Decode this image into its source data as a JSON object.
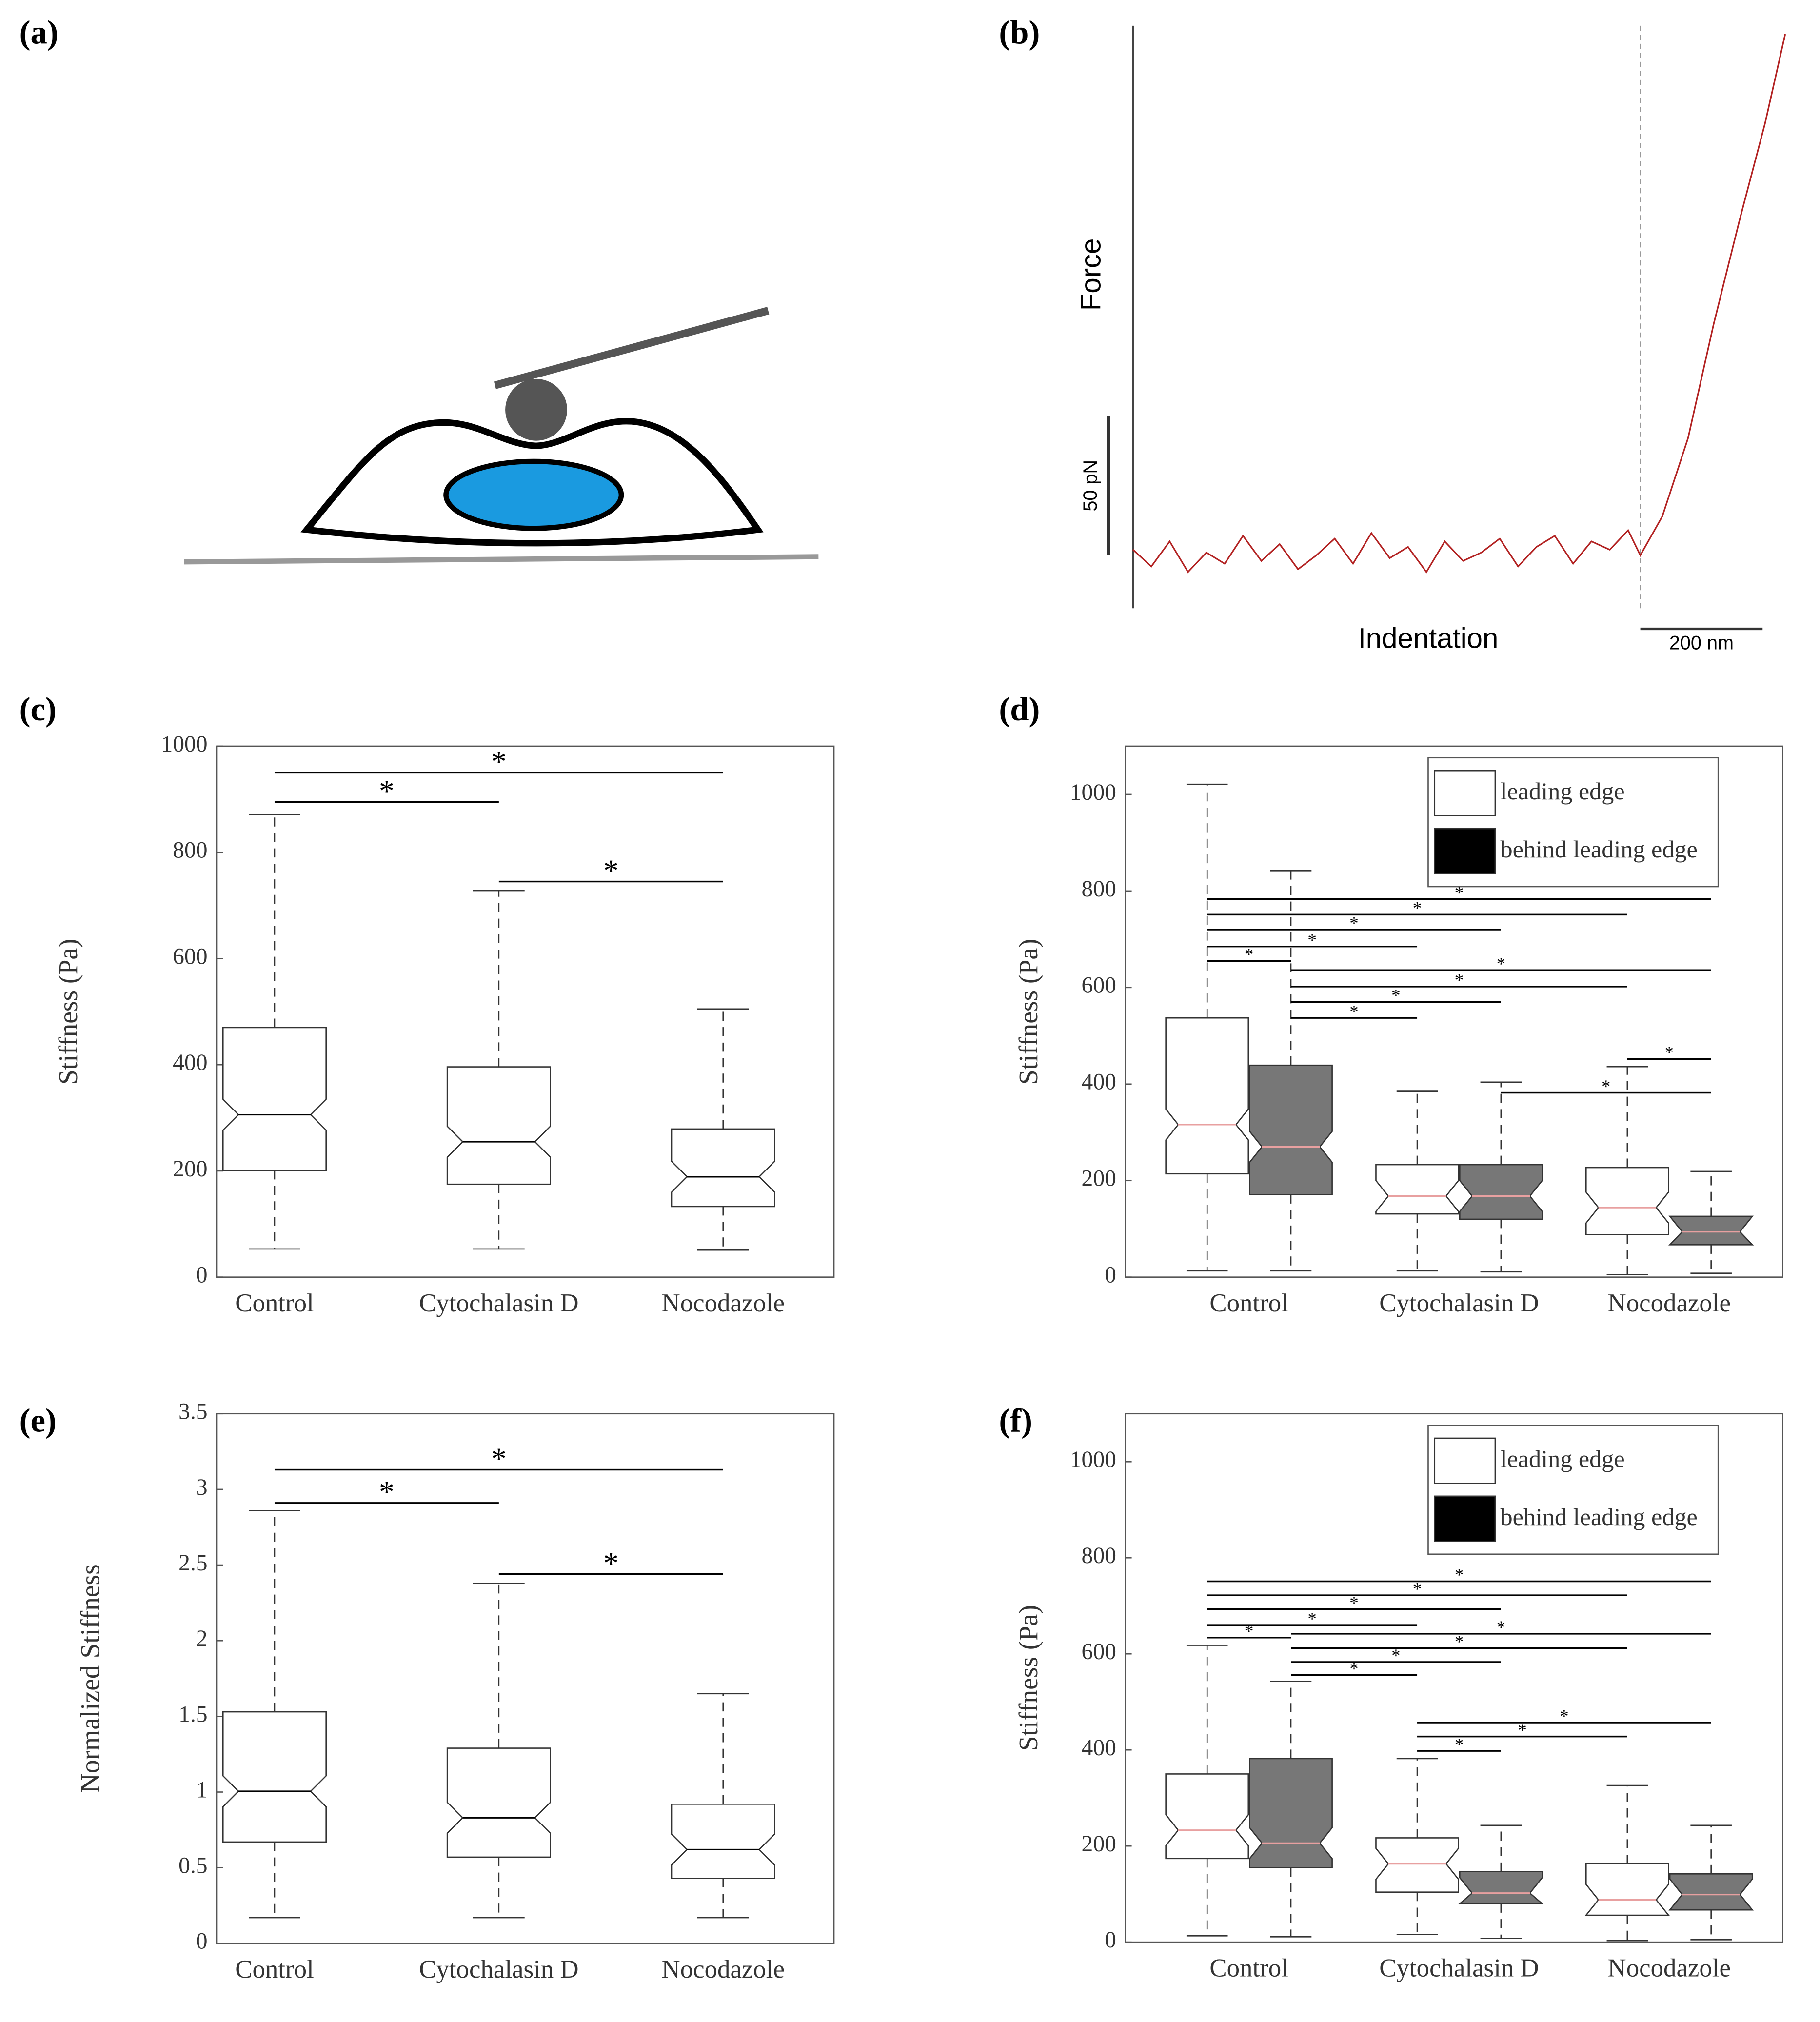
{
  "panel_labels": [
    "(a)",
    "(b)",
    "(c)",
    "(d)",
    "(e)",
    "(f)"
  ],
  "chart_data": [
    {
      "type": "line",
      "ylabel": "Force",
      "xlabel": "Indentation",
      "color": "#b22222",
      "xlim": [
        0,
        1067
      ],
      "ylim": [
        -19,
        190
      ],
      "contact_x": 830,
      "scale_bars": [
        {
          "axis": "y",
          "value": 50,
          "label": "50 pN"
        },
        {
          "axis": "x",
          "value": 200,
          "label": "200 nm"
        }
      ],
      "x": [
        0,
        30,
        60,
        90,
        120,
        150,
        180,
        210,
        240,
        270,
        300,
        330,
        360,
        390,
        420,
        450,
        480,
        510,
        540,
        570,
        600,
        630,
        660,
        690,
        720,
        750,
        780,
        810,
        830,
        866,
        908,
        950,
        992,
        1034,
        1067
      ],
      "values": [
        2,
        -4,
        5,
        -6,
        1,
        -3,
        7,
        -2,
        4,
        -5,
        0,
        6,
        -3,
        8,
        -1,
        3,
        -6,
        5,
        -2,
        1,
        6,
        -4,
        3,
        7,
        -3,
        5,
        2,
        9,
        0,
        14,
        42,
        83,
        120,
        155,
        187
      ]
    },
    {
      "type": "box",
      "ylabel": "Stiffness (Pa)",
      "categories": [
        "Control",
        "Cytochalasin D",
        "Nocodazole"
      ],
      "ylim": [
        0,
        1000
      ],
      "yticks": [
        0,
        200,
        400,
        600,
        800,
        1000
      ],
      "median_color": "#000000",
      "series": [
        {
          "color": "#ffffff",
          "boxes": [
            {
              "whislo": 53,
              "q1": 201,
              "med": 306,
              "q3": 470,
              "whishi": 871
            },
            {
              "whislo": 53,
              "q1": 175,
              "med": 255,
              "q3": 396,
              "whishi": 728
            },
            {
              "whislo": 51,
              "q1": 133,
              "med": 189,
              "q3": 279,
              "whishi": 505
            }
          ]
        }
      ],
      "significance": [
        {
          "from": [
            0,
            0
          ],
          "to": [
            1,
            0
          ],
          "y": 895,
          "label": "*"
        },
        {
          "from": [
            0,
            0
          ],
          "to": [
            2,
            0
          ],
          "y": 950,
          "label": "*"
        },
        {
          "from": [
            1,
            0
          ],
          "to": [
            2,
            0
          ],
          "y": 745,
          "label": "*"
        }
      ]
    },
    {
      "type": "box",
      "ylabel": "Stiffness (Pa)",
      "categories": [
        "Control",
        "Cytochalasin D",
        "Nocodazole"
      ],
      "ylim": [
        0,
        1100
      ],
      "yticks": [
        0,
        200,
        400,
        600,
        800,
        1000
      ],
      "median_color": "#e8a0a0",
      "legend": "upper right",
      "series": [
        {
          "name": "leading edge",
          "color": "#ffffff",
          "legend_color": "#ffffff",
          "boxes": [
            {
              "whislo": 13,
              "q1": 214,
              "med": 316,
              "q3": 537,
              "whishi": 1021
            },
            {
              "whislo": 13,
              "q1": 131,
              "med": 168,
              "q3": 233,
              "whishi": 385
            },
            {
              "whislo": 5,
              "q1": 88,
              "med": 144,
              "q3": 227,
              "whishi": 436
            }
          ]
        },
        {
          "name": "behind leading edge",
          "color": "#777777",
          "legend_color": "#000000",
          "boxes": [
            {
              "whislo": 13,
              "q1": 171,
              "med": 270,
              "q3": 439,
              "whishi": 842
            },
            {
              "whislo": 11,
              "q1": 120,
              "med": 168,
              "q3": 233,
              "whishi": 404
            },
            {
              "whislo": 8,
              "q1": 67,
              "med": 94,
              "q3": 126,
              "whishi": 219
            }
          ]
        }
      ],
      "significance": [
        {
          "from": [
            0,
            0
          ],
          "to": [
            0,
            1
          ],
          "y": 655,
          "label": "*"
        },
        {
          "from": [
            0,
            0
          ],
          "to": [
            1,
            0
          ],
          "y": 685,
          "label": "*"
        },
        {
          "from": [
            0,
            0
          ],
          "to": [
            1,
            1
          ],
          "y": 720,
          "label": "*"
        },
        {
          "from": [
            0,
            0
          ],
          "to": [
            2,
            0
          ],
          "y": 751,
          "label": "*"
        },
        {
          "from": [
            0,
            0
          ],
          "to": [
            2,
            1
          ],
          "y": 783,
          "label": "*"
        },
        {
          "from": [
            0,
            1
          ],
          "to": [
            1,
            0
          ],
          "y": 537,
          "label": "*"
        },
        {
          "from": [
            0,
            1
          ],
          "to": [
            1,
            1
          ],
          "y": 570,
          "label": "*"
        },
        {
          "from": [
            0,
            1
          ],
          "to": [
            2,
            0
          ],
          "y": 602,
          "label": "*"
        },
        {
          "from": [
            0,
            1
          ],
          "to": [
            2,
            1
          ],
          "y": 636,
          "label": "*"
        },
        {
          "from": [
            1,
            1
          ],
          "to": [
            2,
            1
          ],
          "y": 382,
          "label": "*"
        },
        {
          "from": [
            2,
            0
          ],
          "to": [
            2,
            1
          ],
          "y": 452,
          "label": "*"
        }
      ]
    },
    {
      "type": "box",
      "ylabel": "Normalized Stiffness",
      "categories": [
        "Control",
        "Cytochalasin D",
        "Nocodazole"
      ],
      "ylim": [
        0,
        3.5
      ],
      "yticks": [
        0,
        0.5,
        1,
        1.5,
        2,
        2.5,
        3,
        3.5
      ],
      "median_color": "#000000",
      "series": [
        {
          "color": "#ffffff",
          "boxes": [
            {
              "whislo": 0.17,
              "q1": 0.67,
              "med": 1.005,
              "q3": 1.53,
              "whishi": 2.86
            },
            {
              "whislo": 0.17,
              "q1": 0.57,
              "med": 0.83,
              "q3": 1.29,
              "whishi": 2.38
            },
            {
              "whislo": 0.17,
              "q1": 0.43,
              "med": 0.62,
              "q3": 0.92,
              "whishi": 1.65
            }
          ]
        }
      ],
      "significance": [
        {
          "from": [
            0,
            0
          ],
          "to": [
            1,
            0
          ],
          "y": 2.91,
          "label": "*"
        },
        {
          "from": [
            0,
            0
          ],
          "to": [
            2,
            0
          ],
          "y": 3.13,
          "label": "*"
        },
        {
          "from": [
            1,
            0
          ],
          "to": [
            2,
            0
          ],
          "y": 2.44,
          "label": "*"
        }
      ]
    },
    {
      "type": "box",
      "ylabel": "Stiffness (Pa)",
      "categories": [
        "Control",
        "Cytochalasin D",
        "Nocodazole"
      ],
      "ylim": [
        0,
        1100
      ],
      "yticks": [
        0,
        200,
        400,
        600,
        800,
        1000
      ],
      "median_color": "#e8a0a0",
      "legend": "upper right",
      "series": [
        {
          "name": "leading edge",
          "color": "#ffffff",
          "legend_color": "#ffffff",
          "boxes": [
            {
              "whislo": 13,
              "q1": 174,
              "med": 233,
              "q3": 350,
              "whishi": 618
            },
            {
              "whislo": 16,
              "q1": 104,
              "med": 163,
              "q3": 217,
              "whishi": 382
            },
            {
              "whislo": 3,
              "q1": 56,
              "med": 88,
              "q3": 163,
              "whishi": 326
            }
          ]
        },
        {
          "name": "behind leading edge",
          "color": "#777777",
          "legend_color": "#000000",
          "boxes": [
            {
              "whislo": 11,
              "q1": 155,
              "med": 206,
              "q3": 382,
              "whishi": 543
            },
            {
              "whislo": 8,
              "q1": 80,
              "med": 102,
              "q3": 147,
              "whishi": 243
            },
            {
              "whislo": 5,
              "q1": 67,
              "med": 99,
              "q3": 142,
              "whishi": 243
            }
          ]
        }
      ],
      "significance": [
        {
          "from": [
            0,
            0
          ],
          "to": [
            0,
            1
          ],
          "y": 634,
          "label": "*"
        },
        {
          "from": [
            0,
            0
          ],
          "to": [
            1,
            0
          ],
          "y": 660,
          "label": "*"
        },
        {
          "from": [
            0,
            0
          ],
          "to": [
            1,
            1
          ],
          "y": 693,
          "label": "*"
        },
        {
          "from": [
            0,
            0
          ],
          "to": [
            2,
            0
          ],
          "y": 722,
          "label": "*"
        },
        {
          "from": [
            0,
            0
          ],
          "to": [
            2,
            1
          ],
          "y": 751,
          "label": "*"
        },
        {
          "from": [
            0,
            1
          ],
          "to": [
            1,
            0
          ],
          "y": 556,
          "label": "*"
        },
        {
          "from": [
            0,
            1
          ],
          "to": [
            1,
            1
          ],
          "y": 583,
          "label": "*"
        },
        {
          "from": [
            0,
            1
          ],
          "to": [
            2,
            0
          ],
          "y": 612,
          "label": "*"
        },
        {
          "from": [
            0,
            1
          ],
          "to": [
            2,
            1
          ],
          "y": 642,
          "label": "*"
        },
        {
          "from": [
            1,
            0
          ],
          "to": [
            1,
            1
          ],
          "y": 398,
          "label": "*"
        },
        {
          "from": [
            1,
            0
          ],
          "to": [
            2,
            0
          ],
          "y": 428,
          "label": "*"
        },
        {
          "from": [
            1,
            0
          ],
          "to": [
            2,
            1
          ],
          "y": 457,
          "label": "*"
        }
      ]
    }
  ]
}
